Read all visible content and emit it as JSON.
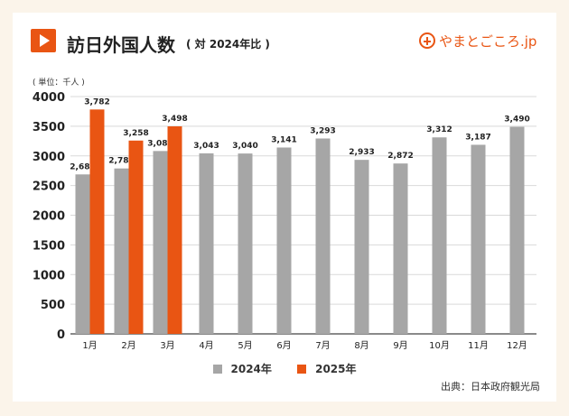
{
  "header": {
    "title": "訪日外国人数",
    "subtitle": "( 対 2024年比 )"
  },
  "logo": {
    "text": "やまとごころ.jp"
  },
  "unit_label": "( 単位：千人 )",
  "source": "出典：日本政府観光局",
  "colors": {
    "series_2024": "#a6a6a6",
    "series_2025": "#e95513",
    "accent": "#e95513"
  },
  "chart_data": {
    "type": "bar",
    "categories": [
      "1月",
      "2月",
      "3月",
      "4月",
      "5月",
      "6月",
      "7月",
      "8月",
      "9月",
      "10月",
      "11月",
      "12月"
    ],
    "series": [
      {
        "name": "2024年",
        "values": [
          2688,
          2788,
          3082,
          3043,
          3040,
          3141,
          3293,
          2933,
          2872,
          3312,
          3187,
          3490
        ]
      },
      {
        "name": "2025年",
        "values": [
          3782,
          3258,
          3498,
          null,
          null,
          null,
          null,
          null,
          null,
          null,
          null,
          null
        ]
      }
    ],
    "ylim": [
      0,
      4000
    ],
    "yticks": [
      0,
      500,
      1000,
      1500,
      2000,
      2500,
      3000,
      3500,
      4000
    ],
    "value_labels": [
      [
        "2,688",
        "2,788",
        "3,082",
        "3,043",
        "3,040",
        "3,141",
        "3,293",
        "2,933",
        "2,872",
        "3,312",
        "3,187",
        "3,490"
      ],
      [
        "3,782",
        "3,258",
        "3,498",
        null,
        null,
        null,
        null,
        null,
        null,
        null,
        null,
        null
      ]
    ],
    "grid": true,
    "legend_position": "bottom-center"
  }
}
